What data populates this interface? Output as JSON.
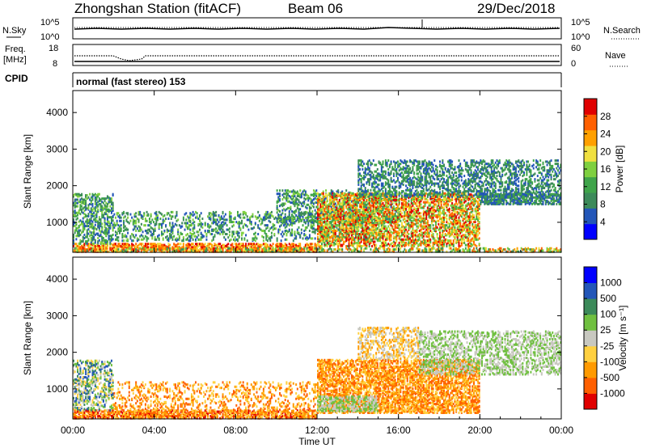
{
  "header": {
    "station": "Zhongshan Station (fitACF)",
    "beam": "Beam 06",
    "date": "29/Dec/2018"
  },
  "noise_panel": {
    "left_label": "N.Sky",
    "right_label": "N.Search",
    "left_ticks": [
      "10^5",
      "10^0"
    ],
    "right_ticks": [
      "10^5",
      "10^0"
    ]
  },
  "freq_panel": {
    "left_label_1": "Freq.",
    "left_label_2": "[MHz]",
    "right_label": "Nave",
    "left_ticks": [
      "18",
      "8"
    ],
    "right_ticks": [
      "60",
      "0"
    ]
  },
  "cpid": {
    "label": "CPID",
    "text": "normal (fast stereo) 153"
  },
  "colors": {
    "power": [
      "#0000ff",
      "#2356b8",
      "#3c8a5a",
      "#3fa44a",
      "#7fd040",
      "#f0e040",
      "#ffa000",
      "#ff6000",
      "#e00000"
    ],
    "velocity": [
      "#e00000",
      "#ff6000",
      "#ff9a00",
      "#ffd040",
      "#c8c8c0",
      "#70c040",
      "#3c8a5a",
      "#2356b8",
      "#0000ff"
    ]
  },
  "chart_data": [
    {
      "type": "heatmap",
      "title": "",
      "xlabel": "",
      "ylabel": "Slant Range [km]",
      "x_ticks": [
        "00:00",
        "04:00",
        "08:00",
        "12:00",
        "16:00",
        "20:00",
        "00:00"
      ],
      "y_ticks": [
        "1000",
        "2000",
        "3000",
        "4000"
      ],
      "ylim": [
        180,
        4600
      ],
      "colorbar": {
        "label": "Power [dB]",
        "ticks": [
          "4",
          "8",
          "12",
          "16",
          "20",
          "24",
          "28"
        ],
        "range": [
          0,
          30
        ]
      }
    },
    {
      "type": "heatmap",
      "title": "",
      "xlabel": "Time UT",
      "ylabel": "Slant Range [km]",
      "x_ticks": [
        "00:00",
        "04:00",
        "08:00",
        "12:00",
        "16:00",
        "20:00",
        "00:00"
      ],
      "y_ticks": [
        "1000",
        "2000",
        "3000",
        "4000"
      ],
      "ylim": [
        180,
        4600
      ],
      "colorbar": {
        "label": "Velocity [m s⁻¹]",
        "ticks": [
          "1000",
          "500",
          "100",
          "25",
          "-25",
          "-100",
          "-500",
          "-1000"
        ]
      }
    }
  ]
}
